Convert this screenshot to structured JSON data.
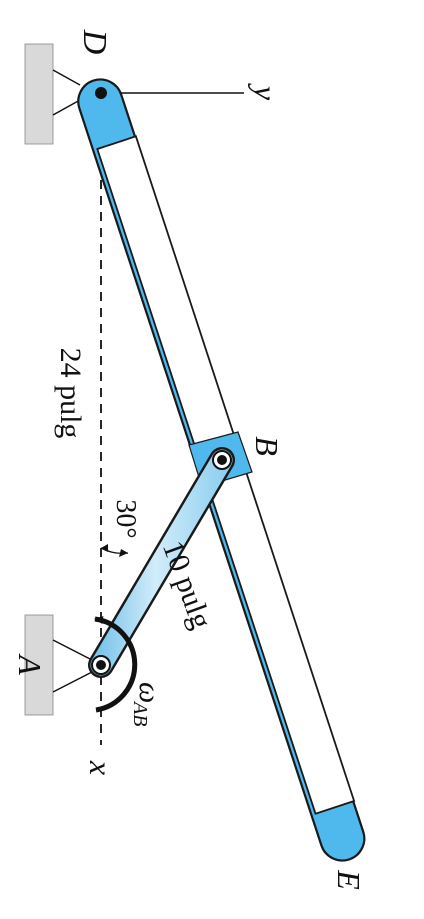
{
  "diagram": {
    "points": {
      "D": "D",
      "B": "B",
      "E": "E",
      "A": "A"
    },
    "axes": {
      "x": "x",
      "y": "y"
    },
    "dimensions": {
      "vertical_distance": "24 pulg",
      "link_length": "10 pulg",
      "angle": "30°"
    },
    "angular_velocity": {
      "symbol": "ω",
      "subscript": "AB"
    },
    "colors": {
      "bar_fill": "#4fb8ec",
      "bar_outline": "#1a1a1a",
      "support_fill": "#d9d9d9",
      "arrow": "#111111"
    }
  }
}
